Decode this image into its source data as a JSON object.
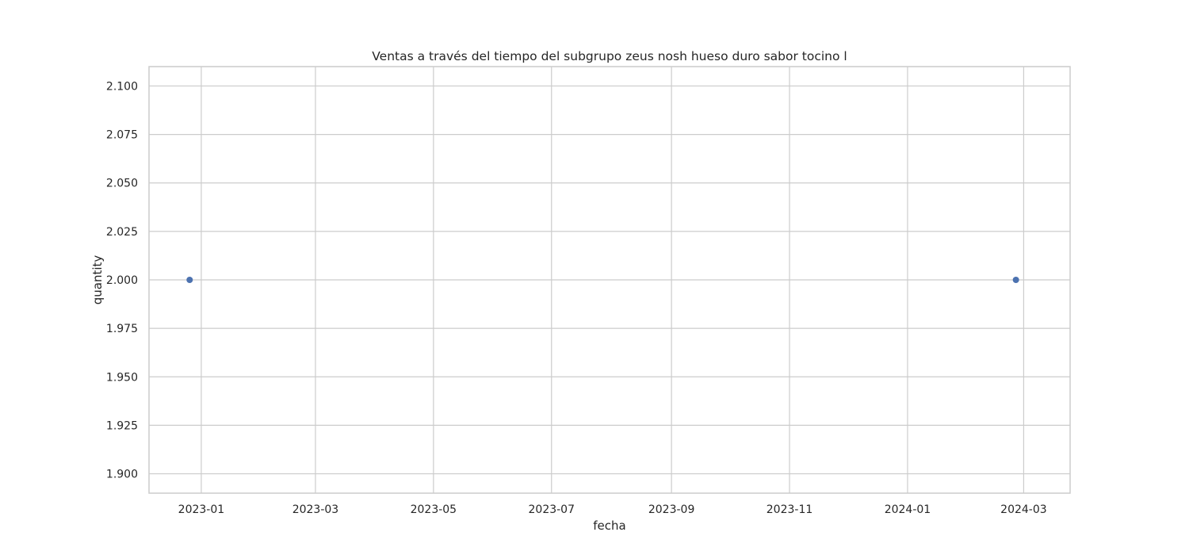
{
  "chart_data": {
    "type": "scatter",
    "title": "Ventas a través del tiempo del subgrupo zeus nosh hueso duro sabor tocino l",
    "xlabel": "fecha",
    "ylabel": "quantity",
    "x_type": "date",
    "xlim": [
      "2022-12-05",
      "2024-03-25"
    ],
    "ylim": [
      1.89,
      2.11
    ],
    "x_ticks": [
      "2023-01-01",
      "2023-03-01",
      "2023-05-01",
      "2023-07-01",
      "2023-09-01",
      "2023-11-01",
      "2024-01-01",
      "2024-03-01"
    ],
    "x_tick_labels": [
      "2023-01",
      "2023-03",
      "2023-05",
      "2023-07",
      "2023-09",
      "2023-11",
      "2024-01",
      "2024-03"
    ],
    "y_ticks": [
      1.9,
      1.925,
      1.95,
      1.975,
      2.0,
      2.025,
      2.05,
      2.075,
      2.1
    ],
    "y_tick_labels": [
      "1.900",
      "1.925",
      "1.950",
      "1.975",
      "2.000",
      "2.025",
      "2.050",
      "2.075",
      "2.100"
    ],
    "grid": true,
    "points": [
      {
        "x": "2022-12-26",
        "y": 2.0
      },
      {
        "x": "2024-02-26",
        "y": 2.0
      }
    ],
    "colors": {
      "marker": "#4c72b0",
      "grid": "#cccccc",
      "spine": "#cccccc",
      "text": "#262626"
    }
  }
}
